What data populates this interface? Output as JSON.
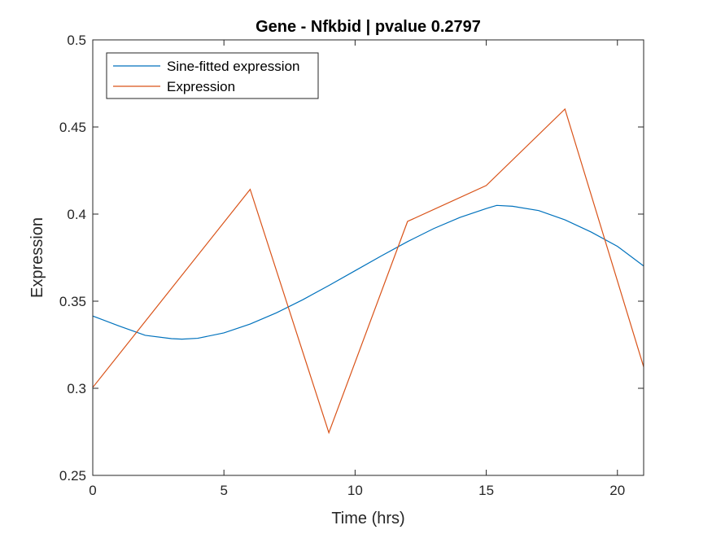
{
  "chart_data": {
    "type": "line",
    "title": "Gene - Nfkbid | pvalue 0.2797",
    "xlabel": "Time (hrs)",
    "ylabel": "Expression",
    "xlim": [
      0,
      21
    ],
    "ylim": [
      0.25,
      0.5
    ],
    "xticks": [
      0,
      5,
      10,
      15,
      20
    ],
    "yticks": [
      0.25,
      0.3,
      0.35,
      0.4,
      0.45,
      0.5
    ],
    "xtick_labels": [
      "0",
      "5",
      "10",
      "15",
      "20"
    ],
    "ytick_labels": [
      "0.25",
      "0.3",
      "0.35",
      "0.4",
      "0.45",
      "0.5"
    ],
    "grid": false,
    "legend_position": "top-left",
    "series": [
      {
        "name": "Sine-fitted expression",
        "color": "#0072BD",
        "x": [
          0,
          1,
          2,
          3,
          3.4,
          4,
          5,
          6,
          7,
          8,
          9,
          10,
          11,
          12,
          13,
          14,
          15,
          15.4,
          16,
          17,
          18,
          19,
          20,
          21
        ],
        "y": [
          0.3415,
          0.3358,
          0.3304,
          0.3285,
          0.3282,
          0.3287,
          0.3318,
          0.3369,
          0.3433,
          0.3508,
          0.359,
          0.3675,
          0.376,
          0.3842,
          0.3917,
          0.3981,
          0.4032,
          0.405,
          0.4045,
          0.402,
          0.3967,
          0.3897,
          0.3815,
          0.3702
        ]
      },
      {
        "name": "Expression",
        "color": "#D95319",
        "x": [
          0,
          6,
          9,
          12,
          15,
          18,
          21
        ],
        "y": [
          0.3005,
          0.4142,
          0.2745,
          0.3958,
          0.4164,
          0.4603,
          0.3123
        ]
      }
    ]
  }
}
